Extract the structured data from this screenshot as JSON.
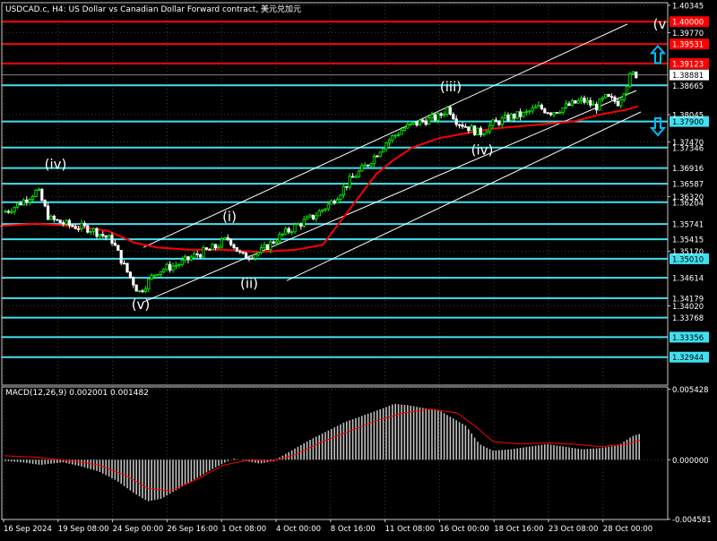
{
  "header": {
    "title": "USDCAD.c, H4:  US Dollar vs Canadian Dollar Forward contract, 美元兑加元"
  },
  "colors": {
    "background": "#000000",
    "grid": "#3c3c3c",
    "axis": "#c8c8c8",
    "text": "#ffffff",
    "bull_candle": "#00ff00",
    "bear_candle": "#ffffff",
    "ma": "#ff0000",
    "level_cyan": "#40e0f0",
    "level_red": "#ff0000",
    "channel": "#ffffff",
    "bid_line": "#808080",
    "arrow": "#00bfff",
    "macd_hist": "#c0c0c0",
    "macd_signal": "#ff0000",
    "badge_cyan_text": "#000000"
  },
  "chart_data": [
    {
      "type": "candlestick",
      "symbol": "USDCAD.c",
      "timeframe": "H4",
      "ylim": [
        1.3235,
        1.404
      ],
      "price_ticks": [
        "1.40345",
        "1.39770",
        "1.38045",
        "1.37470",
        "1.36320",
        "1.35170",
        "1.34020"
      ],
      "x_tick_labels": [
        "16 Sep 2024",
        "19 Sep 08:00",
        "24 Sep 00:00",
        "26 Sep 16:00",
        "1 Oct 08:00",
        "4 Oct 00:00",
        "8 Oct 16:00",
        "11 Oct 08:00",
        "16 Oct 00:00",
        "18 Oct 16:00",
        "23 Oct 08:00",
        "28 Oct 00:00"
      ],
      "close_path": [
        [
          0,
          1.3595
        ],
        [
          20,
          1.3615
        ],
        [
          42,
          1.3645
        ],
        [
          55,
          1.3585
        ],
        [
          80,
          1.357
        ],
        [
          100,
          1.3565
        ],
        [
          125,
          1.354
        ],
        [
          140,
          1.348
        ],
        [
          155,
          1.343
        ],
        [
          175,
          1.3475
        ],
        [
          200,
          1.349
        ],
        [
          220,
          1.351
        ],
        [
          240,
          1.3525
        ],
        [
          255,
          1.3545
        ],
        [
          270,
          1.3505
        ],
        [
          290,
          1.3515
        ],
        [
          310,
          1.3545
        ],
        [
          330,
          1.357
        ],
        [
          350,
          1.359
        ],
        [
          370,
          1.362
        ],
        [
          390,
          1.3665
        ],
        [
          410,
          1.37
        ],
        [
          430,
          1.3745
        ],
        [
          450,
          1.3775
        ],
        [
          470,
          1.379
        ],
        [
          490,
          1.38
        ],
        [
          500,
          1.382
        ],
        [
          510,
          1.379
        ],
        [
          525,
          1.3775
        ],
        [
          535,
          1.3765
        ],
        [
          550,
          1.3785
        ],
        [
          570,
          1.38
        ],
        [
          585,
          1.3805
        ],
        [
          600,
          1.382
        ],
        [
          615,
          1.381
        ],
        [
          630,
          1.382
        ],
        [
          650,
          1.3835
        ],
        [
          665,
          1.382
        ],
        [
          675,
          1.384
        ],
        [
          690,
          1.383
        ],
        [
          698,
          1.3865
        ],
        [
          705,
          1.389
        ],
        [
          712,
          1.3888
        ]
      ],
      "ma_path": [
        [
          0,
          1.357
        ],
        [
          40,
          1.3575
        ],
        [
          80,
          1.357
        ],
        [
          120,
          1.356
        ],
        [
          150,
          1.3535
        ],
        [
          175,
          1.3525
        ],
        [
          210,
          1.352
        ],
        [
          250,
          1.352
        ],
        [
          290,
          1.3515
        ],
        [
          330,
          1.352
        ],
        [
          360,
          1.353
        ],
        [
          380,
          1.358
        ],
        [
          400,
          1.363
        ],
        [
          420,
          1.368
        ],
        [
          440,
          1.371
        ],
        [
          460,
          1.3735
        ],
        [
          490,
          1.3755
        ],
        [
          520,
          1.3765
        ],
        [
          550,
          1.3775
        ],
        [
          580,
          1.378
        ],
        [
          610,
          1.3785
        ],
        [
          640,
          1.379
        ],
        [
          670,
          1.3805
        ],
        [
          700,
          1.3815
        ],
        [
          712,
          1.3822
        ]
      ],
      "levels": [
        {
          "price": 1.4,
          "label": "1.40000",
          "color": "red",
          "filled": true
        },
        {
          "price": 1.3953,
          "label": "1.39531",
          "color": "red",
          "filled": true
        },
        {
          "price": 1.3912,
          "label": "1.39123",
          "color": "red",
          "filled": true
        },
        {
          "price": 1.3866,
          "label": "1.38665",
          "color": "cyan",
          "filled": false
        },
        {
          "price": 1.379,
          "label": "1.37900",
          "color": "cyan",
          "filled": true
        },
        {
          "price": 1.3735,
          "label": "1.37346",
          "color": "cyan",
          "filled": false
        },
        {
          "price": 1.3692,
          "label": "1.36916",
          "color": "cyan",
          "filled": false
        },
        {
          "price": 1.3659,
          "label": "1.36587",
          "color": "cyan",
          "filled": false
        },
        {
          "price": 1.362,
          "label": "1.36204",
          "color": "cyan",
          "filled": false
        },
        {
          "price": 1.3574,
          "label": "1.35741",
          "color": "cyan",
          "filled": false
        },
        {
          "price": 1.3542,
          "label": "1.35415",
          "color": "cyan",
          "filled": false
        },
        {
          "price": 1.3501,
          "label": "1.35010",
          "color": "cyan",
          "filled": true
        },
        {
          "price": 1.3461,
          "label": "1.34614",
          "color": "cyan",
          "filled": false
        },
        {
          "price": 1.3418,
          "label": "1.34179",
          "color": "cyan",
          "filled": false
        },
        {
          "price": 1.3377,
          "label": "1.33768",
          "color": "cyan",
          "filled": false
        },
        {
          "price": 1.3336,
          "label": "1.33356",
          "color": "cyan",
          "filled": true
        },
        {
          "price": 1.3294,
          "label": "1.32944",
          "color": "cyan",
          "filled": true
        }
      ],
      "current_price": {
        "price": 1.3888,
        "label": "1.38881"
      },
      "channel_lines": [
        {
          "from": [
            160,
            1.3525
          ],
          "to": [
            700,
            1.3995
          ]
        },
        {
          "from": [
            160,
            1.341
          ],
          "to": [
            710,
            1.3855
          ]
        },
        {
          "from": [
            320,
            1.3455
          ],
          "to": [
            715,
            1.381
          ]
        }
      ],
      "wave_labels": [
        {
          "text": "(iv)",
          "x": 62,
          "price": 1.369
        },
        {
          "text": "(v)",
          "x": 157,
          "price": 1.3395
        },
        {
          "text": "(i)",
          "x": 256,
          "price": 1.358
        },
        {
          "text": "(ii)",
          "x": 278,
          "price": 1.344
        },
        {
          "text": "(iii)",
          "x": 503,
          "price": 1.3853
        },
        {
          "text": "(iv)",
          "x": 538,
          "price": 1.372
        },
        {
          "text": "(v",
          "x": 736,
          "price": 1.3985
        }
      ],
      "arrows": [
        {
          "direction": "up",
          "x": 734,
          "price": 1.393
        },
        {
          "direction": "down",
          "x": 734,
          "price": 1.378
        }
      ]
    },
    {
      "type": "macd",
      "label": "MACD(12,26,9) 0.002001 0.001482",
      "ylim": [
        -0.0046,
        0.0056
      ],
      "y_ticks": [
        "0.005428",
        "0.000000",
        "-0.004581"
      ],
      "hist_path": [
        [
          5,
          -0.0001
        ],
        [
          25,
          -0.0002
        ],
        [
          45,
          -0.0004
        ],
        [
          70,
          -0.0002
        ],
        [
          90,
          -0.0005
        ],
        [
          110,
          -0.0009
        ],
        [
          130,
          -0.0016
        ],
        [
          150,
          -0.0026
        ],
        [
          165,
          -0.0032
        ],
        [
          180,
          -0.003
        ],
        [
          200,
          -0.0022
        ],
        [
          220,
          -0.0014
        ],
        [
          240,
          -0.0006
        ],
        [
          260,
          0.0001
        ],
        [
          275,
          -0.0001
        ],
        [
          290,
          -0.0003
        ],
        [
          305,
          -0.0001
        ],
        [
          325,
          0.0007
        ],
        [
          345,
          0.0015
        ],
        [
          365,
          0.0022
        ],
        [
          385,
          0.0029
        ],
        [
          405,
          0.0034
        ],
        [
          425,
          0.0039
        ],
        [
          440,
          0.0043
        ],
        [
          455,
          0.0042
        ],
        [
          470,
          0.004
        ],
        [
          490,
          0.0038
        ],
        [
          505,
          0.0032
        ],
        [
          520,
          0.0026
        ],
        [
          535,
          0.0012
        ],
        [
          550,
          0.0007
        ],
        [
          570,
          0.0008
        ],
        [
          590,
          0.001
        ],
        [
          610,
          0.0012
        ],
        [
          630,
          0.001
        ],
        [
          650,
          0.0008
        ],
        [
          670,
          0.0009
        ],
        [
          690,
          0.0011
        ],
        [
          705,
          0.0018
        ],
        [
          714,
          0.002
        ]
      ],
      "signal_path": [
        [
          5,
          0.0003
        ],
        [
          40,
          0.0002
        ],
        [
          80,
          -0.0001
        ],
        [
          110,
          -0.0004
        ],
        [
          140,
          -0.0012
        ],
        [
          165,
          -0.0022
        ],
        [
          190,
          -0.0024
        ],
        [
          220,
          -0.0015
        ],
        [
          250,
          -0.0004
        ],
        [
          280,
          0.0
        ],
        [
          305,
          -0.0001
        ],
        [
          330,
          0.0004
        ],
        [
          360,
          0.0014
        ],
        [
          390,
          0.0022
        ],
        [
          420,
          0.003
        ],
        [
          450,
          0.0036
        ],
        [
          480,
          0.0039
        ],
        [
          510,
          0.0036
        ],
        [
          530,
          0.0026
        ],
        [
          550,
          0.0014
        ],
        [
          580,
          0.0012
        ],
        [
          610,
          0.0013
        ],
        [
          640,
          0.0012
        ],
        [
          670,
          0.001
        ],
        [
          700,
          0.0012
        ],
        [
          714,
          0.0015
        ]
      ]
    }
  ]
}
